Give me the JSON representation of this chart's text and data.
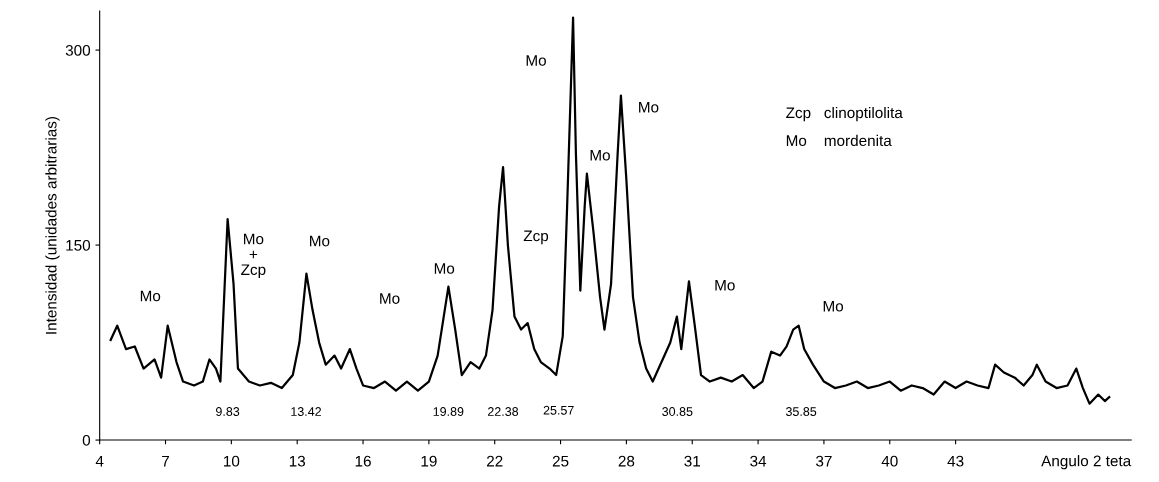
{
  "chart_data": {
    "type": "line",
    "ylabel": "Intensidad (unidades arbitrarias)",
    "xlabel": "Angulo 2 teta",
    "xlim": [
      4,
      51
    ],
    "xticks": [
      4,
      7,
      10,
      13,
      16,
      19,
      22,
      25,
      28,
      31,
      34,
      37,
      40,
      43
    ],
    "ylim": [
      0,
      330
    ],
    "yticks": [
      0,
      150,
      300
    ],
    "grid": false,
    "legend": false,
    "marker": "none",
    "line_style": "solid",
    "series": [
      {
        "color": "#000000",
        "x": [
          4.5,
          4.8,
          5.2,
          5.6,
          6.0,
          6.5,
          6.8,
          7.1,
          7.5,
          7.8,
          8.3,
          8.7,
          9.0,
          9.3,
          9.5,
          9.83,
          10.1,
          10.3,
          10.8,
          11.3,
          11.8,
          12.3,
          12.8,
          13.1,
          13.42,
          13.7,
          14.0,
          14.3,
          14.7,
          15.0,
          15.4,
          15.7,
          16.0,
          16.5,
          17.0,
          17.5,
          18.0,
          18.5,
          19.0,
          19.4,
          19.89,
          20.2,
          20.5,
          20.9,
          21.3,
          21.6,
          21.9,
          22.2,
          22.38,
          22.6,
          22.9,
          23.2,
          23.5,
          23.8,
          24.1,
          24.5,
          24.8,
          25.1,
          25.3,
          25.57,
          25.7,
          25.9,
          26.1,
          26.2,
          26.5,
          26.8,
          27.0,
          27.3,
          27.6,
          27.75,
          28.0,
          28.3,
          28.6,
          28.9,
          29.2,
          29.6,
          30.0,
          30.3,
          30.5,
          30.85,
          31.1,
          31.4,
          31.8,
          32.3,
          32.8,
          33.3,
          33.8,
          34.2,
          34.6,
          35.0,
          35.3,
          35.6,
          35.85,
          36.1,
          36.5,
          37.0,
          37.5,
          38.0,
          38.5,
          39.0,
          39.5,
          40.0,
          40.5,
          41.0,
          41.5,
          42.0,
          42.5,
          43.0,
          43.5,
          44.0,
          44.5,
          44.8,
          45.2,
          45.7,
          46.1,
          46.5,
          46.7,
          47.1,
          47.6,
          48.1,
          48.5,
          48.8,
          49.1,
          49.5,
          49.8,
          50.0
        ],
        "values": [
          77,
          88,
          70,
          72,
          55,
          62,
          48,
          88,
          60,
          45,
          42,
          45,
          62,
          55,
          45,
          170,
          120,
          55,
          45,
          42,
          44,
          40,
          50,
          75,
          128,
          100,
          75,
          58,
          65,
          55,
          70,
          55,
          42,
          40,
          45,
          38,
          45,
          38,
          45,
          65,
          118,
          85,
          50,
          60,
          55,
          65,
          100,
          180,
          210,
          150,
          95,
          85,
          90,
          70,
          60,
          55,
          50,
          80,
          180,
          325,
          220,
          115,
          180,
          205,
          160,
          110,
          85,
          120,
          220,
          265,
          200,
          110,
          75,
          55,
          45,
          60,
          75,
          95,
          70,
          122,
          90,
          50,
          45,
          48,
          45,
          50,
          40,
          45,
          68,
          65,
          72,
          85,
          88,
          70,
          58,
          45,
          40,
          42,
          45,
          40,
          42,
          45,
          38,
          42,
          40,
          35,
          45,
          40,
          45,
          42,
          40,
          58,
          52,
          48,
          42,
          50,
          58,
          45,
          40,
          42,
          55,
          40,
          28,
          35,
          30,
          33
        ]
      }
    ],
    "annotations": [
      "Mo",
      "Mo\n+\nZcp",
      "Mo",
      "Mo",
      "Mo",
      "Zcp",
      "Mo",
      "Mo",
      "Mo",
      "Mo",
      "Mo",
      "9.83",
      "13.42",
      "19.89",
      "22.38",
      "25.57",
      "30.85",
      "35.85",
      "Zcp   clinoptilolita",
      "Mo    mordenita"
    ]
  }
}
